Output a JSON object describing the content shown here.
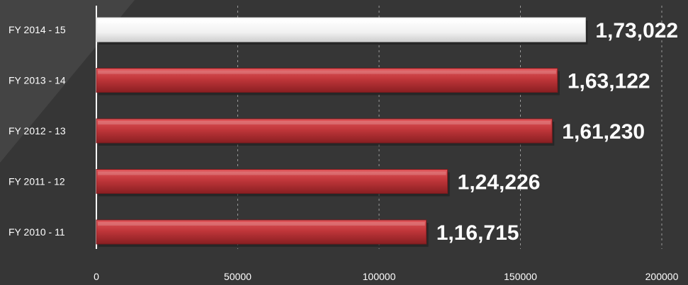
{
  "chart_data": {
    "type": "bar",
    "orientation": "horizontal",
    "categories": [
      "FY 2014 - 15",
      "FY 2013 - 14",
      "FY 2012 - 13",
      "FY 2011 - 12",
      "FY 2010 - 11"
    ],
    "values": [
      173022,
      163122,
      161230,
      124226,
      116715
    ],
    "value_labels": [
      "1,73,022",
      "1,63,122",
      "1,61,230",
      "1,24,226",
      "1,16,715"
    ],
    "xlim": [
      0,
      200000
    ],
    "x_ticks": [
      0,
      50000,
      100000,
      150000,
      200000
    ],
    "x_tick_labels": [
      "0",
      "50000",
      "100000",
      "150000",
      "200000"
    ],
    "grid": "vertical dashed",
    "highlight_category": "FY 2014 - 15"
  },
  "colors": {
    "background": "#363636",
    "background_accent": "#444444",
    "bar": "#c0363a",
    "bar_light": "#e0575b",
    "bar_dark": "#8a1f22",
    "highlight_bar": "#f7f7f7",
    "text": "#ffffff",
    "grid": "#9a9a9a",
    "axis": "#ffffff"
  }
}
